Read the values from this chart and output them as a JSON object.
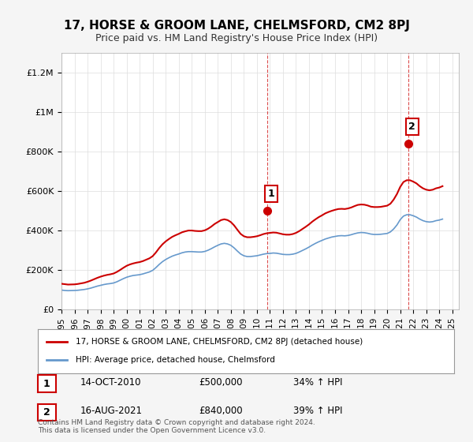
{
  "title": "17, HORSE & GROOM LANE, CHELMSFORD, CM2 8PJ",
  "subtitle": "Price paid vs. HM Land Registry's House Price Index (HPI)",
  "ylabel": "",
  "xlim_start": 1995.0,
  "xlim_end": 2025.5,
  "ylim": [
    0,
    1300000
  ],
  "yticks": [
    0,
    200000,
    400000,
    600000,
    800000,
    1000000,
    1200000
  ],
  "ytick_labels": [
    "£0",
    "£200K",
    "£400K",
    "£600K",
    "£800K",
    "£1M",
    "£1.2M"
  ],
  "xticks": [
    1995,
    1996,
    1997,
    1998,
    1999,
    2000,
    2001,
    2002,
    2003,
    2004,
    2005,
    2006,
    2007,
    2008,
    2009,
    2010,
    2011,
    2012,
    2013,
    2014,
    2015,
    2016,
    2017,
    2018,
    2019,
    2020,
    2021,
    2022,
    2023,
    2024,
    2025
  ],
  "sale1_x": 2010.79,
  "sale1_y": 500000,
  "sale1_label": "1",
  "sale1_date": "14-OCT-2010",
  "sale1_price": "£500,000",
  "sale1_hpi": "34% ↑ HPI",
  "sale2_x": 2021.62,
  "sale2_y": 840000,
  "sale2_label": "2",
  "sale2_date": "16-AUG-2021",
  "sale2_price": "£840,000",
  "sale2_hpi": "39% ↑ HPI",
  "red_color": "#cc0000",
  "blue_color": "#6699cc",
  "bg_color": "#f5f5f5",
  "plot_bg": "#ffffff",
  "legend_label_red": "17, HORSE & GROOM LANE, CHELMSFORD, CM2 8PJ (detached house)",
  "legend_label_blue": "HPI: Average price, detached house, Chelmsford",
  "footer": "Contains HM Land Registry data © Crown copyright and database right 2024.\nThis data is licensed under the Open Government Licence v3.0.",
  "hpi_years": [
    1995.0,
    1995.25,
    1995.5,
    1995.75,
    1996.0,
    1996.25,
    1996.5,
    1996.75,
    1997.0,
    1997.25,
    1997.5,
    1997.75,
    1998.0,
    1998.25,
    1998.5,
    1998.75,
    1999.0,
    1999.25,
    1999.5,
    1999.75,
    2000.0,
    2000.25,
    2000.5,
    2000.75,
    2001.0,
    2001.25,
    2001.5,
    2001.75,
    2002.0,
    2002.25,
    2002.5,
    2002.75,
    2003.0,
    2003.25,
    2003.5,
    2003.75,
    2004.0,
    2004.25,
    2004.5,
    2004.75,
    2005.0,
    2005.25,
    2005.5,
    2005.75,
    2006.0,
    2006.25,
    2006.5,
    2006.75,
    2007.0,
    2007.25,
    2007.5,
    2007.75,
    2008.0,
    2008.25,
    2008.5,
    2008.75,
    2009.0,
    2009.25,
    2009.5,
    2009.75,
    2010.0,
    2010.25,
    2010.5,
    2010.75,
    2011.0,
    2011.25,
    2011.5,
    2011.75,
    2012.0,
    2012.25,
    2012.5,
    2012.75,
    2013.0,
    2013.25,
    2013.5,
    2013.75,
    2014.0,
    2014.25,
    2014.5,
    2014.75,
    2015.0,
    2015.25,
    2015.5,
    2015.75,
    2016.0,
    2016.25,
    2016.5,
    2016.75,
    2017.0,
    2017.25,
    2017.5,
    2017.75,
    2018.0,
    2018.25,
    2018.5,
    2018.75,
    2019.0,
    2019.25,
    2019.5,
    2019.75,
    2020.0,
    2020.25,
    2020.5,
    2020.75,
    2021.0,
    2021.25,
    2021.5,
    2021.75,
    2022.0,
    2022.25,
    2022.5,
    2022.75,
    2023.0,
    2023.25,
    2023.5,
    2023.75,
    2024.0,
    2024.25
  ],
  "hpi_values": [
    98000,
    96000,
    95000,
    95500,
    96000,
    97000,
    99000,
    101000,
    104000,
    108000,
    113000,
    118000,
    122000,
    126000,
    129000,
    131000,
    134000,
    140000,
    148000,
    156000,
    163000,
    168000,
    172000,
    174000,
    176000,
    180000,
    185000,
    190000,
    198000,
    212000,
    228000,
    242000,
    253000,
    262000,
    270000,
    276000,
    281000,
    287000,
    291000,
    293000,
    293000,
    292000,
    291000,
    291000,
    294000,
    300000,
    308000,
    317000,
    325000,
    332000,
    335000,
    332000,
    325000,
    312000,
    296000,
    281000,
    272000,
    268000,
    268000,
    270000,
    272000,
    276000,
    280000,
    283000,
    284000,
    286000,
    285000,
    282000,
    279000,
    278000,
    278000,
    280000,
    284000,
    291000,
    299000,
    307000,
    316000,
    326000,
    335000,
    343000,
    350000,
    357000,
    362000,
    367000,
    370000,
    373000,
    374000,
    373000,
    375000,
    379000,
    384000,
    388000,
    390000,
    389000,
    386000,
    382000,
    380000,
    380000,
    381000,
    383000,
    385000,
    393000,
    408000,
    428000,
    455000,
    473000,
    480000,
    480000,
    475000,
    468000,
    458000,
    450000,
    445000,
    443000,
    445000,
    450000,
    453000,
    458000
  ],
  "red_years": [
    1995.0,
    1995.25,
    1995.5,
    1995.75,
    1996.0,
    1996.25,
    1996.5,
    1996.75,
    1997.0,
    1997.25,
    1997.5,
    1997.75,
    1998.0,
    1998.25,
    1998.5,
    1998.75,
    1999.0,
    1999.25,
    1999.5,
    1999.75,
    2000.0,
    2000.25,
    2000.5,
    2000.75,
    2001.0,
    2001.25,
    2001.5,
    2001.75,
    2002.0,
    2002.25,
    2002.5,
    2002.75,
    2003.0,
    2003.25,
    2003.5,
    2003.75,
    2004.0,
    2004.25,
    2004.5,
    2004.75,
    2005.0,
    2005.25,
    2005.5,
    2005.75,
    2006.0,
    2006.25,
    2006.5,
    2006.75,
    2007.0,
    2007.25,
    2007.5,
    2007.75,
    2008.0,
    2008.25,
    2008.5,
    2008.75,
    2009.0,
    2009.25,
    2009.5,
    2009.75,
    2010.0,
    2010.25,
    2010.5,
    2010.75,
    2011.0,
    2011.25,
    2011.5,
    2011.75,
    2012.0,
    2012.25,
    2012.5,
    2012.75,
    2013.0,
    2013.25,
    2013.5,
    2013.75,
    2014.0,
    2014.25,
    2014.5,
    2014.75,
    2015.0,
    2015.25,
    2015.5,
    2015.75,
    2016.0,
    2016.25,
    2016.5,
    2016.75,
    2017.0,
    2017.25,
    2017.5,
    2017.75,
    2018.0,
    2018.25,
    2018.5,
    2018.75,
    2019.0,
    2019.25,
    2019.5,
    2019.75,
    2020.0,
    2020.25,
    2020.5,
    2020.75,
    2021.0,
    2021.25,
    2021.5,
    2021.75,
    2022.0,
    2022.25,
    2022.5,
    2022.75,
    2023.0,
    2023.25,
    2023.5,
    2023.75,
    2024.0,
    2024.25
  ],
  "red_values": [
    130000,
    128000,
    126000,
    126500,
    127000,
    129000,
    132000,
    135000,
    140000,
    146000,
    153000,
    160000,
    166000,
    171000,
    175000,
    178000,
    182000,
    190000,
    200000,
    211000,
    221000,
    228000,
    233000,
    237000,
    240000,
    245000,
    252000,
    259000,
    270000,
    289000,
    311000,
    330000,
    345000,
    357000,
    368000,
    376000,
    383000,
    391000,
    396000,
    400000,
    400000,
    398000,
    397000,
    397000,
    401000,
    409000,
    420000,
    433000,
    443000,
    453000,
    457000,
    453000,
    443000,
    426000,
    404000,
    383000,
    371000,
    366000,
    366000,
    368000,
    371000,
    376000,
    382000,
    386000,
    388000,
    390000,
    389000,
    385000,
    381000,
    379000,
    379000,
    382000,
    388000,
    397000,
    408000,
    419000,
    431000,
    445000,
    457000,
    468000,
    477000,
    487000,
    494000,
    500000,
    505000,
    509000,
    510000,
    509000,
    512000,
    517000,
    524000,
    530000,
    532000,
    531000,
    527000,
    521000,
    519000,
    519000,
    520000,
    523000,
    526000,
    536000,
    557000,
    585000,
    621000,
    646000,
    655000,
    655000,
    648000,
    639000,
    625000,
    614000,
    607000,
    604000,
    607000,
    614000,
    618000,
    625000
  ]
}
